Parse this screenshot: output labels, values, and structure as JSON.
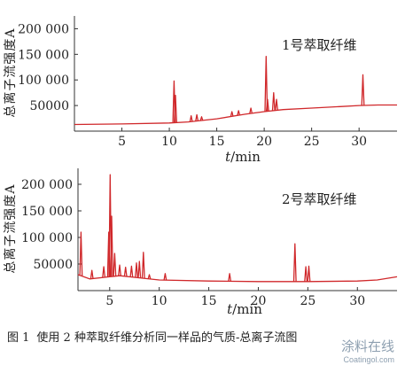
{
  "chart_data": [
    {
      "type": "line",
      "annotation": "1号萃取纤维",
      "ylabel": "总离子流强度A",
      "xlabel_italic": "t",
      "xlabel_unit": "/min",
      "xlim": [
        0,
        34
      ],
      "ylim": [
        0,
        225000
      ],
      "xticks": [
        5,
        10,
        15,
        20,
        25,
        30
      ],
      "yticks": [
        50000,
        100000,
        150000,
        200000
      ],
      "ytick_labels": [
        "50000",
        "100 000",
        "150 000",
        "200 000"
      ],
      "line_color": "#d0282b",
      "baseline": {
        "x": [
          0,
          5,
          10,
          12,
          15,
          18,
          20,
          22,
          25,
          28,
          30,
          32,
          34
        ],
        "y": [
          13000,
          14000,
          16000,
          18000,
          24000,
          33000,
          38000,
          42000,
          45000,
          48000,
          50000,
          51000,
          51000
        ]
      },
      "peaks": [
        {
          "x": 10.5,
          "y": 98000
        },
        {
          "x": 10.65,
          "y": 70000
        },
        {
          "x": 12.3,
          "y": 30000
        },
        {
          "x": 12.9,
          "y": 32000
        },
        {
          "x": 13.4,
          "y": 28000
        },
        {
          "x": 16.6,
          "y": 38000
        },
        {
          "x": 17.3,
          "y": 40000
        },
        {
          "x": 18.6,
          "y": 45000
        },
        {
          "x": 20.2,
          "y": 146000
        },
        {
          "x": 20.35,
          "y": 62000
        },
        {
          "x": 21.0,
          "y": 75000
        },
        {
          "x": 21.3,
          "y": 62000
        },
        {
          "x": 30.4,
          "y": 110000
        }
      ]
    },
    {
      "type": "line",
      "annotation": "2号萃取纤维",
      "ylabel": "总离子流强度A",
      "xlabel_italic": "t",
      "xlabel_unit": "/min",
      "xlim": [
        1.8,
        34
      ],
      "ylim": [
        0,
        230000
      ],
      "xticks": [
        5,
        10,
        15,
        20,
        25,
        30
      ],
      "yticks": [
        50000,
        100000,
        150000,
        200000
      ],
      "ytick_labels": [
        "50000",
        "100 000",
        "150 000",
        "200 000"
      ],
      "line_color": "#d0282b",
      "baseline": {
        "x": [
          1.8,
          3,
          5,
          6,
          8,
          10,
          15,
          20,
          25,
          30,
          32,
          34
        ],
        "y": [
          30000,
          22000,
          26000,
          28000,
          24000,
          20000,
          18000,
          17000,
          17000,
          18000,
          20000,
          26000
        ]
      },
      "peaks": [
        {
          "x": 2.1,
          "y": 110000
        },
        {
          "x": 3.2,
          "y": 38000
        },
        {
          "x": 4.4,
          "y": 45000
        },
        {
          "x": 4.9,
          "y": 110000
        },
        {
          "x": 5.05,
          "y": 218000
        },
        {
          "x": 5.2,
          "y": 140000
        },
        {
          "x": 5.5,
          "y": 70000
        },
        {
          "x": 6.0,
          "y": 48000
        },
        {
          "x": 6.6,
          "y": 44000
        },
        {
          "x": 7.2,
          "y": 46000
        },
        {
          "x": 7.7,
          "y": 52000
        },
        {
          "x": 8.0,
          "y": 55000
        },
        {
          "x": 8.4,
          "y": 72000
        },
        {
          "x": 9.0,
          "y": 30000
        },
        {
          "x": 10.6,
          "y": 32000
        },
        {
          "x": 17.1,
          "y": 32000
        },
        {
          "x": 23.7,
          "y": 88000
        },
        {
          "x": 24.8,
          "y": 45000
        },
        {
          "x": 25.1,
          "y": 46000
        }
      ]
    }
  ],
  "caption": {
    "number": "图 1",
    "text": "使用 2 种萃取纤维分析同一样品的气质-总离子流图"
  },
  "watermark": {
    "cn": "涂料在线",
    "en": "Coatingol.com"
  }
}
